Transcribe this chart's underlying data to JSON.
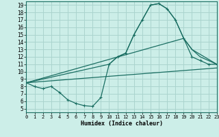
{
  "xlabel": "Humidex (Indice chaleur)",
  "xlim": [
    0,
    23
  ],
  "ylim": [
    4.5,
    19.5
  ],
  "xticks": [
    0,
    1,
    2,
    3,
    4,
    5,
    6,
    7,
    8,
    9,
    10,
    11,
    12,
    13,
    14,
    15,
    16,
    17,
    18,
    19,
    20,
    21,
    22,
    23
  ],
  "yticks": [
    5,
    6,
    7,
    8,
    9,
    10,
    11,
    12,
    13,
    14,
    15,
    16,
    17,
    18,
    19
  ],
  "bg_color": "#cceee8",
  "grid_color": "#aad4ce",
  "line_color": "#1a6e62",
  "line1_x": [
    0,
    1,
    2,
    3,
    4,
    5,
    6,
    7,
    8,
    9,
    10,
    11,
    12,
    13,
    14,
    15,
    16,
    17,
    18,
    19,
    20,
    21,
    22,
    23
  ],
  "line1_y": [
    8.5,
    8.0,
    7.7,
    8.0,
    7.2,
    6.2,
    5.7,
    5.4,
    5.3,
    6.5,
    11.0,
    12.0,
    12.5,
    15.0,
    17.0,
    19.0,
    19.2,
    18.5,
    17.0,
    14.5,
    12.0,
    11.5,
    11.0,
    11.0
  ],
  "line2_x": [
    0,
    23
  ],
  "line2_y": [
    8.5,
    10.5
  ],
  "line3_x": [
    0,
    19,
    20,
    23
  ],
  "line3_y": [
    8.5,
    14.5,
    13.0,
    11.0
  ],
  "line4_x": [
    0,
    10,
    11,
    12,
    13,
    14,
    15,
    16,
    17,
    18,
    19,
    20,
    21,
    22,
    23
  ],
  "line4_y": [
    8.5,
    11.0,
    12.0,
    12.5,
    15.0,
    17.0,
    19.0,
    19.2,
    18.5,
    17.0,
    14.5,
    13.0,
    12.0,
    11.5,
    11.0
  ]
}
